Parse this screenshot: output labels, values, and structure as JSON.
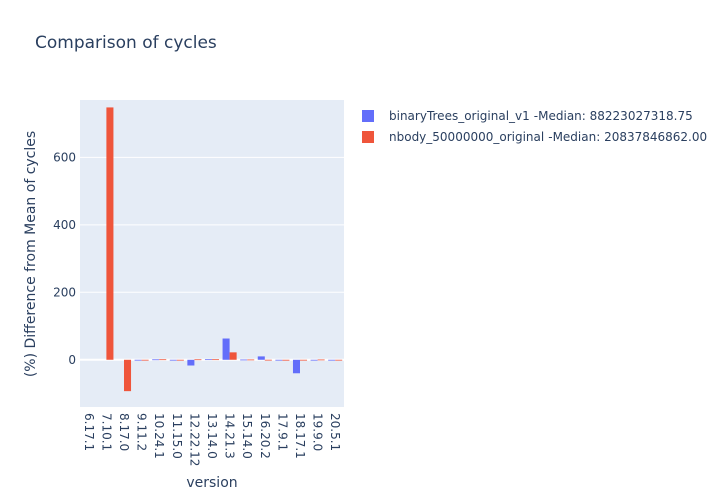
{
  "chart_data": {
    "type": "bar",
    "title": "Comparison of cycles",
    "xlabel": "version",
    "ylabel": "(%) Difference from Mean of cycles",
    "ylim": [
      -140,
      770
    ],
    "yticks": [
      0,
      200,
      400,
      600
    ],
    "grid": true,
    "legend_position": "top-right",
    "categories": [
      "6.17.1",
      "7.10.1",
      "8.17.0",
      "9.11.2",
      "10.24.1",
      "11.15.0",
      "12.22.12",
      "13.14.0",
      "14.21.3",
      "15.14.0",
      "16.20.2",
      "17.9.1",
      "18.17.1",
      "19.9.0",
      "20.5.1"
    ],
    "series": [
      {
        "name": "binaryTrees_original_v1",
        "median": "Median: 88223027318.75",
        "color": "#636efa",
        "values": [
          null,
          null,
          null,
          0,
          1.2,
          -1.5,
          -17,
          1.5,
          63,
          0.7,
          10,
          -0.8,
          -40,
          -1.5,
          -0.6
        ],
        "labels": [
          "",
          "",
          "",
          "",
          "",
          "",
          "",
          "",
          "",
          "",
          "",
          "",
          "",
          "",
          ""
        ]
      },
      {
        "name": "nbody_50000000_original",
        "median": "Median: 20837846862.00",
        "color": "#ef553b",
        "values": [
          null,
          748,
          -93,
          -0.3,
          1.4,
          -2,
          1.3,
          1.5,
          22,
          0.8,
          0.1,
          -2.5,
          -2,
          0.8,
          -2
        ],
        "labels": [
          "",
          "",
          "",
          "",
          "",
          "",
          "",
          "",
          "",
          "",
          "",
          "",
          "",
          "",
          ""
        ]
      }
    ]
  }
}
